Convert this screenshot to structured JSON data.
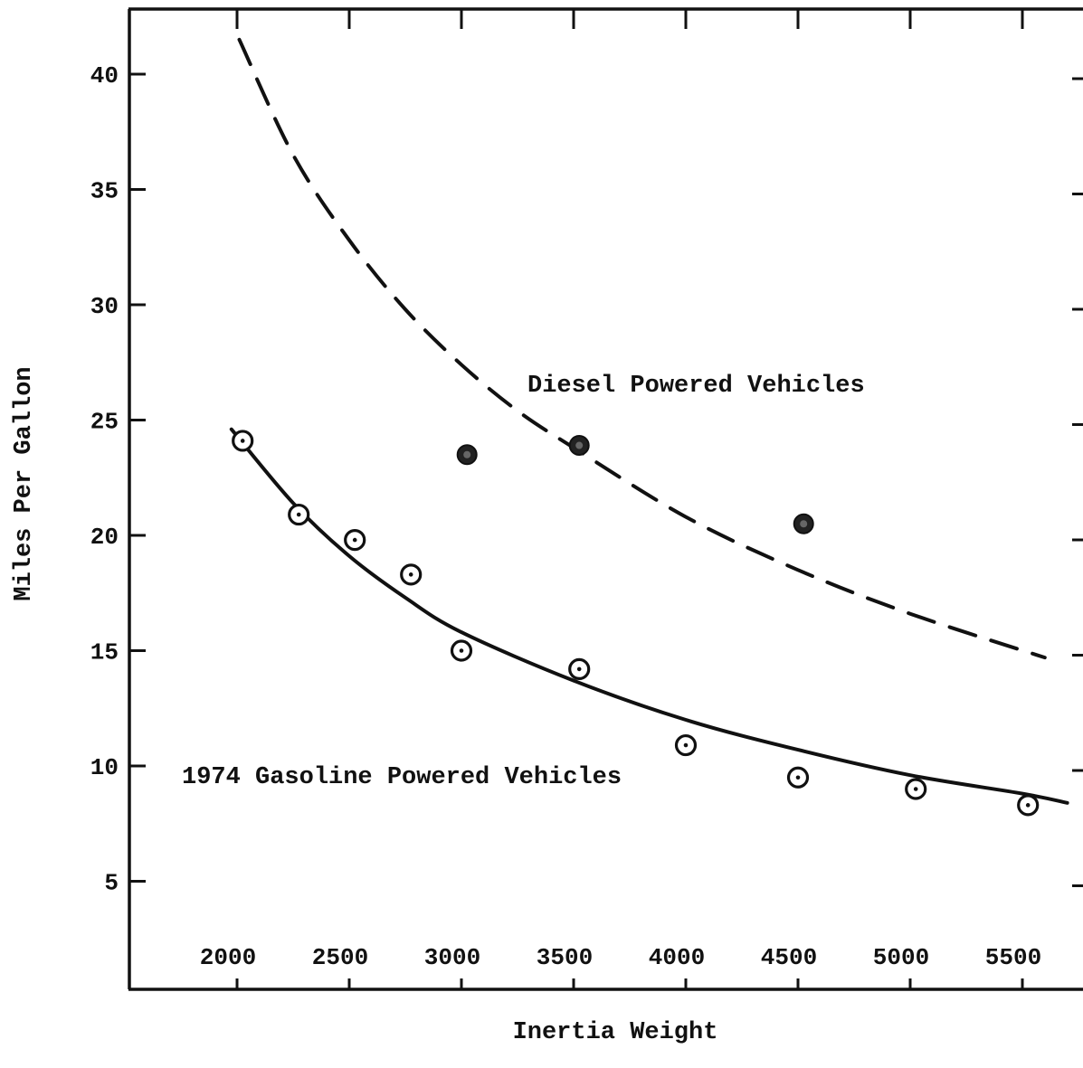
{
  "chart_data": {
    "type": "scatter",
    "title": "",
    "xlabel": "Inertia Weight",
    "ylabel": "Miles Per Gallon",
    "xlim": [
      1500,
      5800
    ],
    "ylim": [
      0,
      43
    ],
    "x_ticks": [
      2000,
      2500,
      3000,
      3500,
      4000,
      4500,
      5000,
      5500
    ],
    "x_tick_labels": [
      "2000",
      "2500",
      "3000",
      "3500",
      "4000",
      "4500",
      "5000",
      "5500"
    ],
    "y_ticks": [
      5,
      10,
      15,
      20,
      25,
      30,
      35,
      40
    ],
    "y_tick_labels": [
      "5",
      "10",
      "15",
      "20",
      "25",
      "30",
      "35",
      "40"
    ],
    "grid": false,
    "annotations": [
      {
        "text": "Diesel Powered Vehicles",
        "x": 3300,
        "y": 26.1
      },
      {
        "text": "1974 Gasoline Powered Vehicles",
        "x": 1750,
        "y": 9.6
      }
    ],
    "series": [
      {
        "marker": "open-circle-dot",
        "points": [
          {
            "x": 2025,
            "y": 24.1
          },
          {
            "x": 2275,
            "y": 20.9
          },
          {
            "x": 2525,
            "y": 19.8
          },
          {
            "x": 2775,
            "y": 18.3
          },
          {
            "x": 3000,
            "y": 15.0
          },
          {
            "x": 3525,
            "y": 14.2
          },
          {
            "x": 4000,
            "y": 10.9
          },
          {
            "x": 4500,
            "y": 9.5
          },
          {
            "x": 5025,
            "y": 9.0
          },
          {
            "x": 5525,
            "y": 8.3
          }
        ]
      },
      {
        "marker": "filled-circle",
        "points": [
          {
            "x": 3025,
            "y": 23.5
          },
          {
            "x": 3525,
            "y": 23.9
          },
          {
            "x": 4525,
            "y": 20.5
          }
        ]
      },
      {
        "line": "solid",
        "curve": [
          {
            "x": 1975,
            "y": 24.6
          },
          {
            "x": 2250,
            "y": 21.4
          },
          {
            "x": 2500,
            "y": 19.1
          },
          {
            "x": 2750,
            "y": 17.3
          },
          {
            "x": 3000,
            "y": 15.8
          },
          {
            "x": 3500,
            "y": 13.7
          },
          {
            "x": 4000,
            "y": 12.0
          },
          {
            "x": 4500,
            "y": 10.7
          },
          {
            "x": 5000,
            "y": 9.6
          },
          {
            "x": 5500,
            "y": 8.8
          },
          {
            "x": 5700,
            "y": 8.4
          }
        ]
      },
      {
        "line": "dashed",
        "curve": [
          {
            "x": 2010,
            "y": 41.5
          },
          {
            "x": 2250,
            "y": 36.5
          },
          {
            "x": 2500,
            "y": 32.8
          },
          {
            "x": 2750,
            "y": 29.8
          },
          {
            "x": 3000,
            "y": 27.4
          },
          {
            "x": 3250,
            "y": 25.4
          },
          {
            "x": 3500,
            "y": 23.8
          },
          {
            "x": 4000,
            "y": 20.8
          },
          {
            "x": 4500,
            "y": 18.5
          },
          {
            "x": 5000,
            "y": 16.6
          },
          {
            "x": 5600,
            "y": 14.7
          }
        ]
      }
    ]
  }
}
